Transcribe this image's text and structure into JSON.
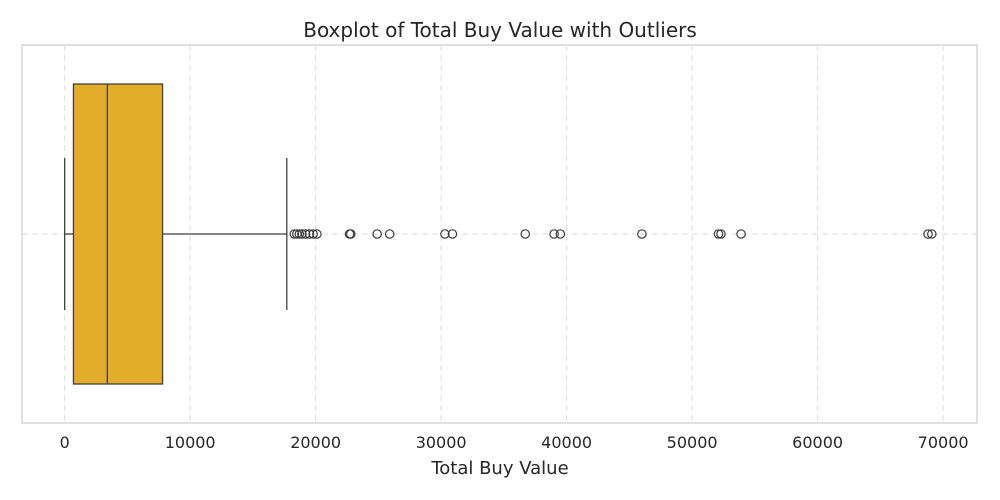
{
  "chart_data": {
    "type": "boxplot",
    "orientation": "horizontal",
    "title": "Boxplot of Total Buy Value with Outliers",
    "xlabel": "Total Buy Value",
    "ylabel": "",
    "xlim": [
      -3400,
      72700
    ],
    "xticks": [
      0,
      10000,
      20000,
      30000,
      40000,
      50000,
      60000,
      70000
    ],
    "xtick_labels": [
      "0",
      "10000",
      "20000",
      "30000",
      "40000",
      "50000",
      "60000",
      "70000"
    ],
    "grid": true,
    "box": {
      "whisker_low": 0,
      "q1": 700,
      "median": 3400,
      "q3": 7800,
      "whisker_high": 17700
    },
    "outliers": [
      18300,
      18500,
      18700,
      18900,
      19200,
      19500,
      19800,
      20100,
      22700,
      22800,
      24900,
      25900,
      30300,
      30900,
      36700,
      39000,
      39500,
      46000,
      52100,
      52300,
      53900,
      68800,
      69100
    ],
    "colors": {
      "box_fill": "#E2AD28",
      "line": "#3f3f3f",
      "grid": "#dddddd",
      "frame": "#cccccc"
    }
  }
}
